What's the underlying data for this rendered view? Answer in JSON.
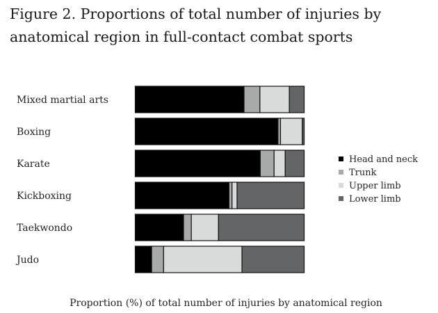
{
  "chart_data": {
    "type": "bar",
    "orientation": "horizontal",
    "stacked": true,
    "title": "Figure 2. Proportions of total number of injuries by anatomical region in full-contact combat sports",
    "title_lines": [
      "Figure 2. Proportions of total number of injuries by",
      "anatomical region in full-contact combat sports"
    ],
    "xlabel": "Proportion (%) of total number of injuries by anatomical region",
    "ylabel": "",
    "xlim": [
      0,
      100
    ],
    "grid": false,
    "legend_position": "right",
    "categories": [
      "Mixed martial arts",
      "Boxing",
      "Karate",
      "Kickboxing",
      "Taekwondo",
      "Judo"
    ],
    "series": [
      {
        "name": "Head and neck",
        "color": "#000000",
        "values": [
          64.4,
          84.5,
          74.0,
          55.5,
          28.6,
          9.7
        ]
      },
      {
        "name": "Trunk",
        "color": "#a8aaaa",
        "values": [
          9.4,
          1.5,
          8.2,
          1.8,
          4.6,
          7.1
        ]
      },
      {
        "name": "Upper limb",
        "color": "#d9dbdb",
        "values": [
          17.4,
          12.9,
          6.6,
          3.0,
          16.1,
          46.4
        ]
      },
      {
        "name": "Lower limb",
        "color": "#636566",
        "values": [
          8.8,
          1.1,
          11.2,
          39.7,
          50.7,
          36.8
        ]
      }
    ]
  }
}
